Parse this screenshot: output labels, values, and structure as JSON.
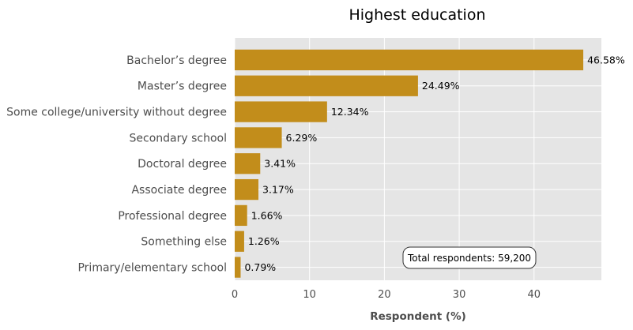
{
  "colors": {
    "bar": "#c28d1b",
    "plot_bg": "#e5e5e5",
    "grid": "#ffffff",
    "text": "#4d4d4d"
  },
  "chart_data": {
    "type": "bar",
    "orientation": "horizontal",
    "title": "Highest education",
    "xlabel": "Respondent (%)",
    "ylabel": "",
    "xlim": [
      0,
      49
    ],
    "xticks": [
      0,
      10,
      20,
      30,
      40
    ],
    "grid": true,
    "categories": [
      "Bachelor’s degree",
      "Master’s degree",
      "Some college/university without degree",
      "Secondary school",
      "Doctoral degree",
      "Associate degree",
      "Professional degree",
      "Something else",
      "Primary/elementary school"
    ],
    "values": [
      46.58,
      24.49,
      12.34,
      6.29,
      3.41,
      3.17,
      1.66,
      1.26,
      0.79
    ],
    "value_labels": [
      "46.58%",
      "24.49%",
      "12.34%",
      "6.29%",
      "3.41%",
      "3.17%",
      "1.66%",
      "1.26%",
      "0.79%"
    ],
    "annotation": "Total respondents: 59,200"
  }
}
